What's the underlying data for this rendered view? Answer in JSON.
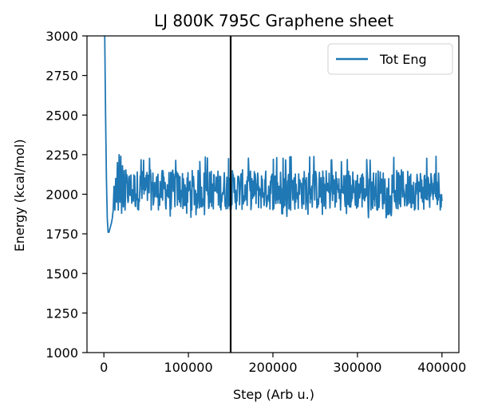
{
  "chart_data": {
    "type": "line",
    "title": "LJ 800K 795C Graphene sheet",
    "xlabel": "Step (Arb u.)",
    "ylabel": "Energy (kcal/mol)",
    "xlim": [
      -20000,
      420000
    ],
    "ylim": [
      1000,
      3000
    ],
    "xticks": [
      0,
      100000,
      200000,
      300000,
      400000
    ],
    "xtick_labels": [
      "0",
      "100000",
      "200000",
      "300000",
      "400000"
    ],
    "yticks": [
      1000,
      1250,
      1500,
      1750,
      2000,
      2250,
      2500,
      2750,
      3000
    ],
    "ytick_labels": [
      "1000",
      "1250",
      "1500",
      "1750",
      "2000",
      "2250",
      "2500",
      "2750",
      "3000"
    ],
    "grid": false,
    "legend_position": "top-right",
    "vline": {
      "x": 150000,
      "color": "#000000"
    },
    "series": [
      {
        "name": "Tot Eng",
        "color": "#1f77b4",
        "points": [
          [
            1000,
            3000
          ],
          [
            2000,
            2500
          ],
          [
            3000,
            2100
          ],
          [
            4000,
            1850
          ],
          [
            5000,
            1760
          ],
          [
            6000,
            1760
          ],
          [
            7000,
            1780
          ],
          [
            8000,
            1800
          ],
          [
            9000,
            1820
          ],
          [
            10000,
            1850
          ],
          [
            11000,
            1900
          ],
          [
            12000,
            2050
          ],
          [
            13000,
            1900
          ],
          [
            14000,
            2100
          ],
          [
            15000,
            1950
          ],
          [
            16000,
            2200
          ],
          [
            17000,
            1900
          ],
          [
            18000,
            2250
          ],
          [
            19000,
            1950
          ],
          [
            20000,
            2240
          ],
          [
            21000,
            1880
          ],
          [
            22000,
            2180
          ],
          [
            23000,
            1920
          ],
          [
            24000,
            2150
          ],
          [
            25000,
            1900
          ]
        ],
        "noise_start": 25000,
        "noise_end": 400000,
        "noise_step": 500,
        "noise_mean": 2010,
        "noise_low": 1880,
        "noise_high": 2180,
        "noise_spike_low": 1850,
        "noise_spike_high": 2240
      }
    ]
  }
}
